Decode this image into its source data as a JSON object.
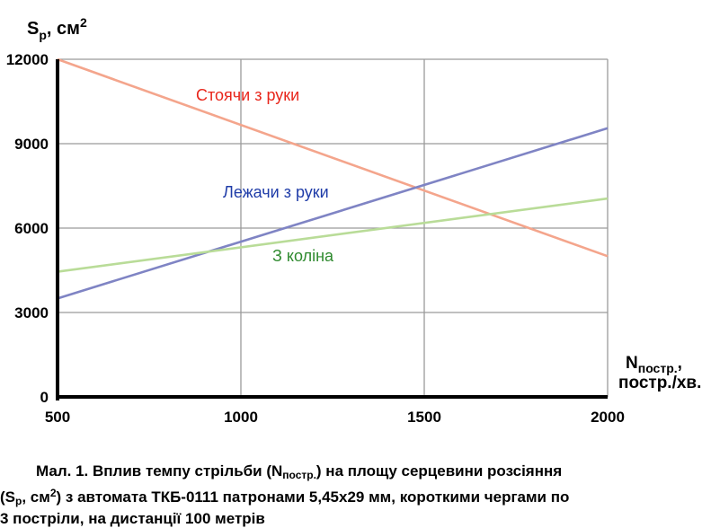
{
  "chart_data": {
    "type": "line",
    "y_axis": {
      "symbol": "S",
      "symbol_sub": "p",
      "unit": ", см",
      "unit_sup": "2"
    },
    "x_axis": {
      "symbol": "N",
      "symbol_sub": "постр.",
      "symbol_tail": ",",
      "unit": "постр./хв."
    },
    "xlim": [
      500,
      2000
    ],
    "ylim": [
      0,
      12000
    ],
    "x_ticks": [
      500,
      1000,
      1500,
      2000
    ],
    "y_ticks": [
      0,
      3000,
      6000,
      9000,
      12000
    ],
    "grid": true,
    "legend": "inline labels",
    "series": [
      {
        "name": "Стоячи з руки",
        "color": "#f4a58c",
        "label_color": "#e8261b",
        "x": [
          500,
          2000
        ],
        "y": [
          12000,
          5000
        ]
      },
      {
        "name": "Лежачи з руки",
        "color": "#7f84c4",
        "label_color": "#1f3ca8",
        "x": [
          500,
          2000
        ],
        "y": [
          3500,
          9550
        ]
      },
      {
        "name": "З коліна",
        "color": "#b9dc98",
        "label_color": "#2f8a2f",
        "x": [
          500,
          2000
        ],
        "y": [
          4450,
          7050
        ]
      }
    ]
  },
  "caption": {
    "line1": "Мал. 1. Вплив темпу стрільби (N",
    "line1_sub": "постр.",
    "line1_tail": ") на площу серцевини розсіяння",
    "line2_a": "(S",
    "line2_sub": "р",
    "line2_b": ", см",
    "line2_sup": "2",
    "line2_c": ") з автомата ТКБ-0111 патронами 5,45х29 мм, короткими чергами по",
    "line3": "3 постріли, на дистанції 100 метрів"
  }
}
